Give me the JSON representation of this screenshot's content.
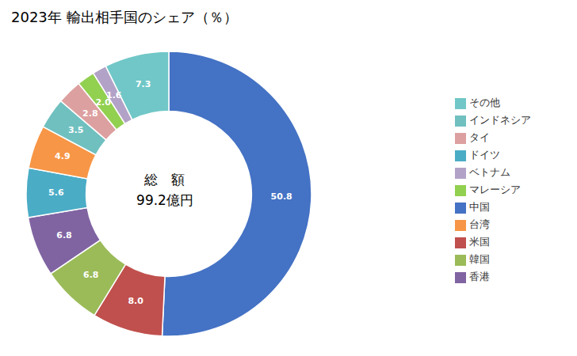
{
  "chart_data": {
    "type": "pie",
    "donut": true,
    "title": "2023年 輸出相手国のシェア（％）",
    "annotations": [
      "総　額",
      "99.2億円"
    ],
    "categories": [
      "中国",
      "米国",
      "韓国",
      "香港",
      "ドイツ",
      "台湾",
      "インドネシア",
      "タイ",
      "マレーシア",
      "ベトナム",
      "その他"
    ],
    "values": [
      50.8,
      8.0,
      6.8,
      6.8,
      5.6,
      4.9,
      3.5,
      2.8,
      2.0,
      1.6,
      7.3
    ],
    "value_labels": [
      "50.8",
      "8.0",
      "6.8",
      "6.8",
      "5.6",
      "4.9",
      "3.5",
      "2.8",
      "2.0",
      "1.6",
      "7.3"
    ],
    "colors": [
      "#4472C4",
      "#C0504D",
      "#9BBB59",
      "#8064A2",
      "#4BACC6",
      "#F79646",
      "#70C0C0",
      "#DDA0A0",
      "#92D050",
      "#B3A2C7",
      "#71C7C7"
    ],
    "data_labels": true,
    "legend": "right"
  }
}
